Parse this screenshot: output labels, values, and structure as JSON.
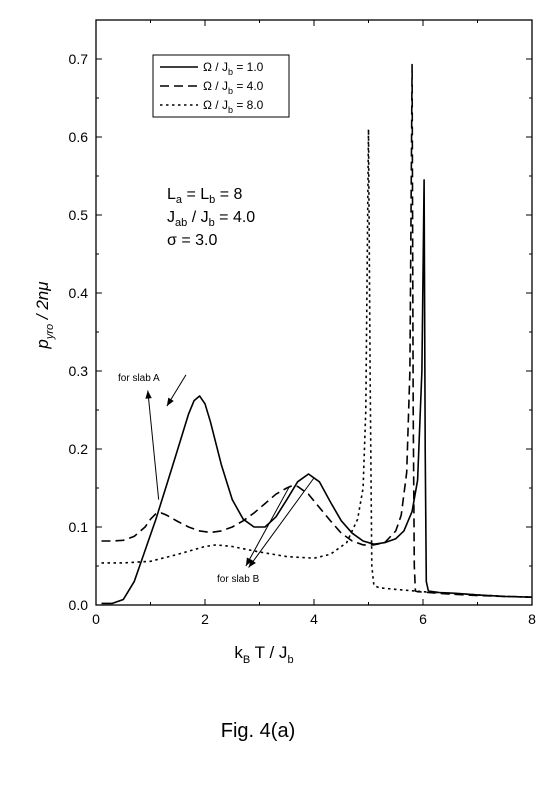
{
  "chart_data": {
    "type": "line",
    "xlabel": {
      "main": "k",
      "sub": "B",
      "rest": " T / J",
      "sub2": "b"
    },
    "ylabel": {
      "main": "p",
      "sub": "yro",
      "rest": " / 2nμ"
    },
    "xlim": [
      0,
      8
    ],
    "ylim": [
      0,
      0.75
    ],
    "x_ticks": [
      0,
      2,
      4,
      6,
      8
    ],
    "x_tick_labels": [
      "0",
      "2",
      "4",
      "6",
      "8"
    ],
    "y_ticks": [
      0.0,
      0.1,
      0.2,
      0.3,
      0.4,
      0.5,
      0.6,
      0.7
    ],
    "y_tick_labels": [
      "0.0",
      "0.1",
      "0.2",
      "0.3",
      "0.4",
      "0.5",
      "0.6",
      "0.7"
    ],
    "grid": false,
    "legend_position": "top-left",
    "series": [
      {
        "name": "Ω / J_b = 1.0",
        "legend": {
          "pre": "Ω / J",
          "sub": "b",
          "post": " = 1.0"
        },
        "style": "solid",
        "x": [
          0.1,
          0.3,
          0.5,
          0.7,
          0.9,
          1.1,
          1.3,
          1.5,
          1.7,
          1.8,
          1.9,
          2.0,
          2.1,
          2.3,
          2.5,
          2.7,
          2.9,
          3.1,
          3.3,
          3.5,
          3.7,
          3.9,
          4.1,
          4.3,
          4.5,
          4.7,
          4.9,
          5.1,
          5.3,
          5.5,
          5.65,
          5.8,
          5.9,
          5.98,
          6.02,
          6.04,
          6.06,
          6.1,
          6.3,
          6.6,
          7.0,
          7.5,
          8.0
        ],
        "y": [
          0.002,
          0.002,
          0.007,
          0.03,
          0.07,
          0.11,
          0.155,
          0.2,
          0.245,
          0.262,
          0.268,
          0.258,
          0.235,
          0.18,
          0.135,
          0.11,
          0.1,
          0.1,
          0.113,
          0.135,
          0.158,
          0.168,
          0.158,
          0.132,
          0.108,
          0.092,
          0.082,
          0.078,
          0.08,
          0.085,
          0.095,
          0.12,
          0.16,
          0.3,
          0.545,
          0.2,
          0.03,
          0.018,
          0.016,
          0.015,
          0.013,
          0.011,
          0.01
        ]
      },
      {
        "name": "Ω / J_b = 4.0",
        "legend": {
          "pre": "Ω / J",
          "sub": "b",
          "post": " = 4.0"
        },
        "style": "dashed",
        "x": [
          0.1,
          0.3,
          0.5,
          0.7,
          0.9,
          1.0,
          1.1,
          1.2,
          1.3,
          1.5,
          1.7,
          1.9,
          2.1,
          2.3,
          2.5,
          2.7,
          2.9,
          3.1,
          3.3,
          3.5,
          3.6,
          3.7,
          3.9,
          4.1,
          4.3,
          4.5,
          4.7,
          4.9,
          5.1,
          5.3,
          5.5,
          5.6,
          5.7,
          5.76,
          5.8,
          5.82,
          5.84,
          5.86,
          5.9,
          6.1,
          6.5,
          7.0,
          7.5,
          8.0
        ],
        "y": [
          0.082,
          0.082,
          0.083,
          0.088,
          0.1,
          0.11,
          0.117,
          0.118,
          0.115,
          0.107,
          0.1,
          0.095,
          0.093,
          0.095,
          0.1,
          0.108,
          0.118,
          0.13,
          0.142,
          0.15,
          0.153,
          0.152,
          0.142,
          0.125,
          0.108,
          0.092,
          0.082,
          0.077,
          0.077,
          0.08,
          0.095,
          0.115,
          0.17,
          0.3,
          0.693,
          0.25,
          0.05,
          0.018,
          0.017,
          0.016,
          0.014,
          0.012,
          0.011,
          0.01
        ]
      },
      {
        "name": "Ω / J_b = 8.0",
        "legend": {
          "pre": "Ω / J",
          "sub": "b",
          "post": " = 8.0"
        },
        "style": "dotted",
        "x": [
          0.1,
          0.5,
          1.0,
          1.5,
          2.0,
          2.2,
          2.5,
          3.0,
          3.5,
          4.0,
          4.3,
          4.6,
          4.8,
          4.9,
          4.95,
          5.0,
          5.03,
          5.06,
          5.1,
          5.2,
          5.5,
          6.0,
          6.5,
          7.0,
          7.5,
          8.0
        ],
        "y": [
          0.054,
          0.054,
          0.056,
          0.065,
          0.075,
          0.077,
          0.075,
          0.068,
          0.062,
          0.06,
          0.065,
          0.08,
          0.11,
          0.15,
          0.25,
          0.61,
          0.3,
          0.05,
          0.025,
          0.022,
          0.02,
          0.017,
          0.015,
          0.013,
          0.011,
          0.01
        ]
      }
    ],
    "annotations": {
      "slab_a_label": "for slab A",
      "slab_b_label": "for slab B",
      "arrows_slab_a": [
        {
          "from": [
            1.15,
            0.135
          ],
          "to": [
            0.95,
            0.275
          ]
        },
        {
          "from": [
            1.65,
            0.295
          ],
          "to": [
            1.3,
            0.255
          ]
        }
      ],
      "arrows_slab_b": [
        {
          "from": [
            3.55,
            0.152
          ],
          "to": [
            2.75,
            0.05
          ]
        },
        {
          "from": [
            4.0,
            0.163
          ],
          "to": [
            2.8,
            0.048
          ]
        }
      ],
      "params": [
        {
          "pre": "L",
          "sub": "a",
          "mid": " = L",
          "sub2": "b",
          "post": " = 8"
        },
        {
          "pre": "J",
          "sub": "ab",
          "mid": " / J",
          "sub2": "b",
          "post": " = 4.0"
        },
        {
          "pre": "σ = 3.0",
          "sub": "",
          "mid": "",
          "sub2": "",
          "post": ""
        }
      ]
    }
  },
  "caption": "Fig. 4(a)"
}
